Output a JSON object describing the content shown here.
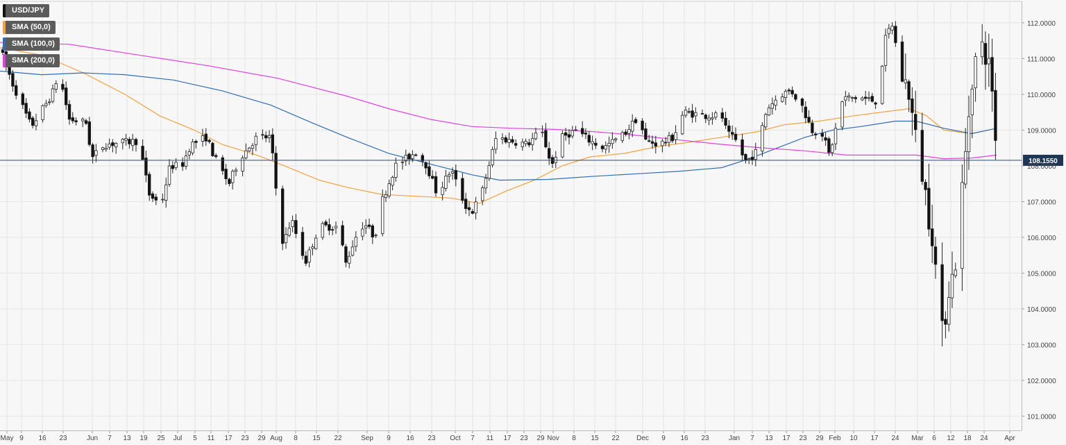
{
  "chart_data": {
    "type": "candlestick",
    "symbol": "USD/JPY",
    "last_price_label": "108.1550",
    "last_price": 108.155,
    "ylim": [
      100.6,
      112.6
    ],
    "y_ticks": [
      "101.0000",
      "102.0000",
      "103.0000",
      "104.0000",
      "105.0000",
      "106.0000",
      "107.0000",
      "108.0000",
      "109.0000",
      "110.0000",
      "111.0000",
      "112.0000"
    ],
    "x_ticks": [
      "May",
      "9",
      "16",
      "23",
      "Jun",
      "7",
      "13",
      "19",
      "25",
      "Jul",
      "5",
      "11",
      "17",
      "23",
      "29",
      "Aug",
      "8",
      "15",
      "22",
      "Sep",
      "9",
      "16",
      "23",
      "Oct",
      "7",
      "11",
      "17",
      "23",
      "29",
      "Nov",
      "8",
      "15",
      "22",
      "Dec",
      "9",
      "16",
      "23",
      "Jan",
      "7",
      "13",
      "17",
      "23",
      "29",
      "Feb",
      "10",
      "17",
      "24",
      "Mar",
      "6",
      "12",
      "18",
      "24",
      "Apr"
    ],
    "grid": true,
    "legend_position": "top-left",
    "legend": [
      {
        "label": "USD/JPY",
        "color": "#111111"
      },
      {
        "label": "SMA (50,0)",
        "color": "#f5a23a"
      },
      {
        "label": "SMA (100,0)",
        "color": "#2f6db5"
      },
      {
        "label": "SMA (200,0)",
        "color": "#e040e0"
      }
    ],
    "series": [
      {
        "name": "SMA (50,0)",
        "color": "#f5a23a",
        "points": [
          [
            0,
            111.3
          ],
          [
            60,
            111.1
          ],
          [
            120,
            110.6
          ],
          [
            180,
            110.0
          ],
          [
            230,
            109.4
          ],
          [
            280,
            109.0
          ],
          [
            320,
            108.6
          ],
          [
            370,
            108.3
          ],
          [
            410,
            108.0
          ],
          [
            460,
            107.6
          ],
          [
            500,
            107.4
          ],
          [
            550,
            107.2
          ],
          [
            600,
            107.15
          ],
          [
            650,
            107.1
          ],
          [
            690,
            106.95
          ],
          [
            730,
            107.3
          ],
          [
            770,
            107.6
          ],
          [
            810,
            108.0
          ],
          [
            850,
            108.25
          ],
          [
            900,
            108.35
          ],
          [
            950,
            108.55
          ],
          [
            990,
            108.65
          ],
          [
            1040,
            108.8
          ],
          [
            1090,
            108.95
          ],
          [
            1130,
            109.15
          ],
          [
            1180,
            109.25
          ],
          [
            1230,
            109.4
          ],
          [
            1270,
            109.5
          ],
          [
            1310,
            109.6
          ],
          [
            1335,
            109.4
          ],
          [
            1360,
            109.0
          ],
          [
            1400,
            108.9
          ],
          [
            1436,
            109.05
          ]
        ]
      },
      {
        "name": "SMA (100,0)",
        "color": "#2f6db5",
        "points": [
          [
            0,
            110.65
          ],
          [
            60,
            110.55
          ],
          [
            120,
            110.6
          ],
          [
            180,
            110.55
          ],
          [
            250,
            110.4
          ],
          [
            320,
            110.1
          ],
          [
            390,
            109.7
          ],
          [
            450,
            109.2
          ],
          [
            500,
            108.8
          ],
          [
            560,
            108.35
          ],
          [
            620,
            108.05
          ],
          [
            680,
            107.75
          ],
          [
            720,
            107.6
          ],
          [
            790,
            107.62
          ],
          [
            850,
            107.7
          ],
          [
            920,
            107.78
          ],
          [
            980,
            107.85
          ],
          [
            1040,
            107.95
          ],
          [
            1080,
            108.2
          ],
          [
            1120,
            108.5
          ],
          [
            1160,
            108.8
          ],
          [
            1200,
            109.0
          ],
          [
            1240,
            109.1
          ],
          [
            1290,
            109.25
          ],
          [
            1320,
            109.25
          ],
          [
            1360,
            109.05
          ],
          [
            1400,
            108.9
          ],
          [
            1436,
            109.05
          ]
        ]
      },
      {
        "name": "SMA (200,0)",
        "color": "#e040e0",
        "points": [
          [
            0,
            111.45
          ],
          [
            100,
            111.4
          ],
          [
            200,
            111.1
          ],
          [
            300,
            110.8
          ],
          [
            400,
            110.45
          ],
          [
            500,
            109.95
          ],
          [
            560,
            109.6
          ],
          [
            620,
            109.3
          ],
          [
            680,
            109.1
          ],
          [
            740,
            109.05
          ],
          [
            800,
            109.02
          ],
          [
            860,
            108.95
          ],
          [
            920,
            108.85
          ],
          [
            980,
            108.72
          ],
          [
            1040,
            108.6
          ],
          [
            1100,
            108.5
          ],
          [
            1160,
            108.42
          ],
          [
            1220,
            108.3
          ],
          [
            1280,
            108.3
          ],
          [
            1320,
            108.3
          ],
          [
            1360,
            108.2
          ],
          [
            1400,
            108.22
          ],
          [
            1436,
            108.3
          ]
        ]
      }
    ]
  }
}
